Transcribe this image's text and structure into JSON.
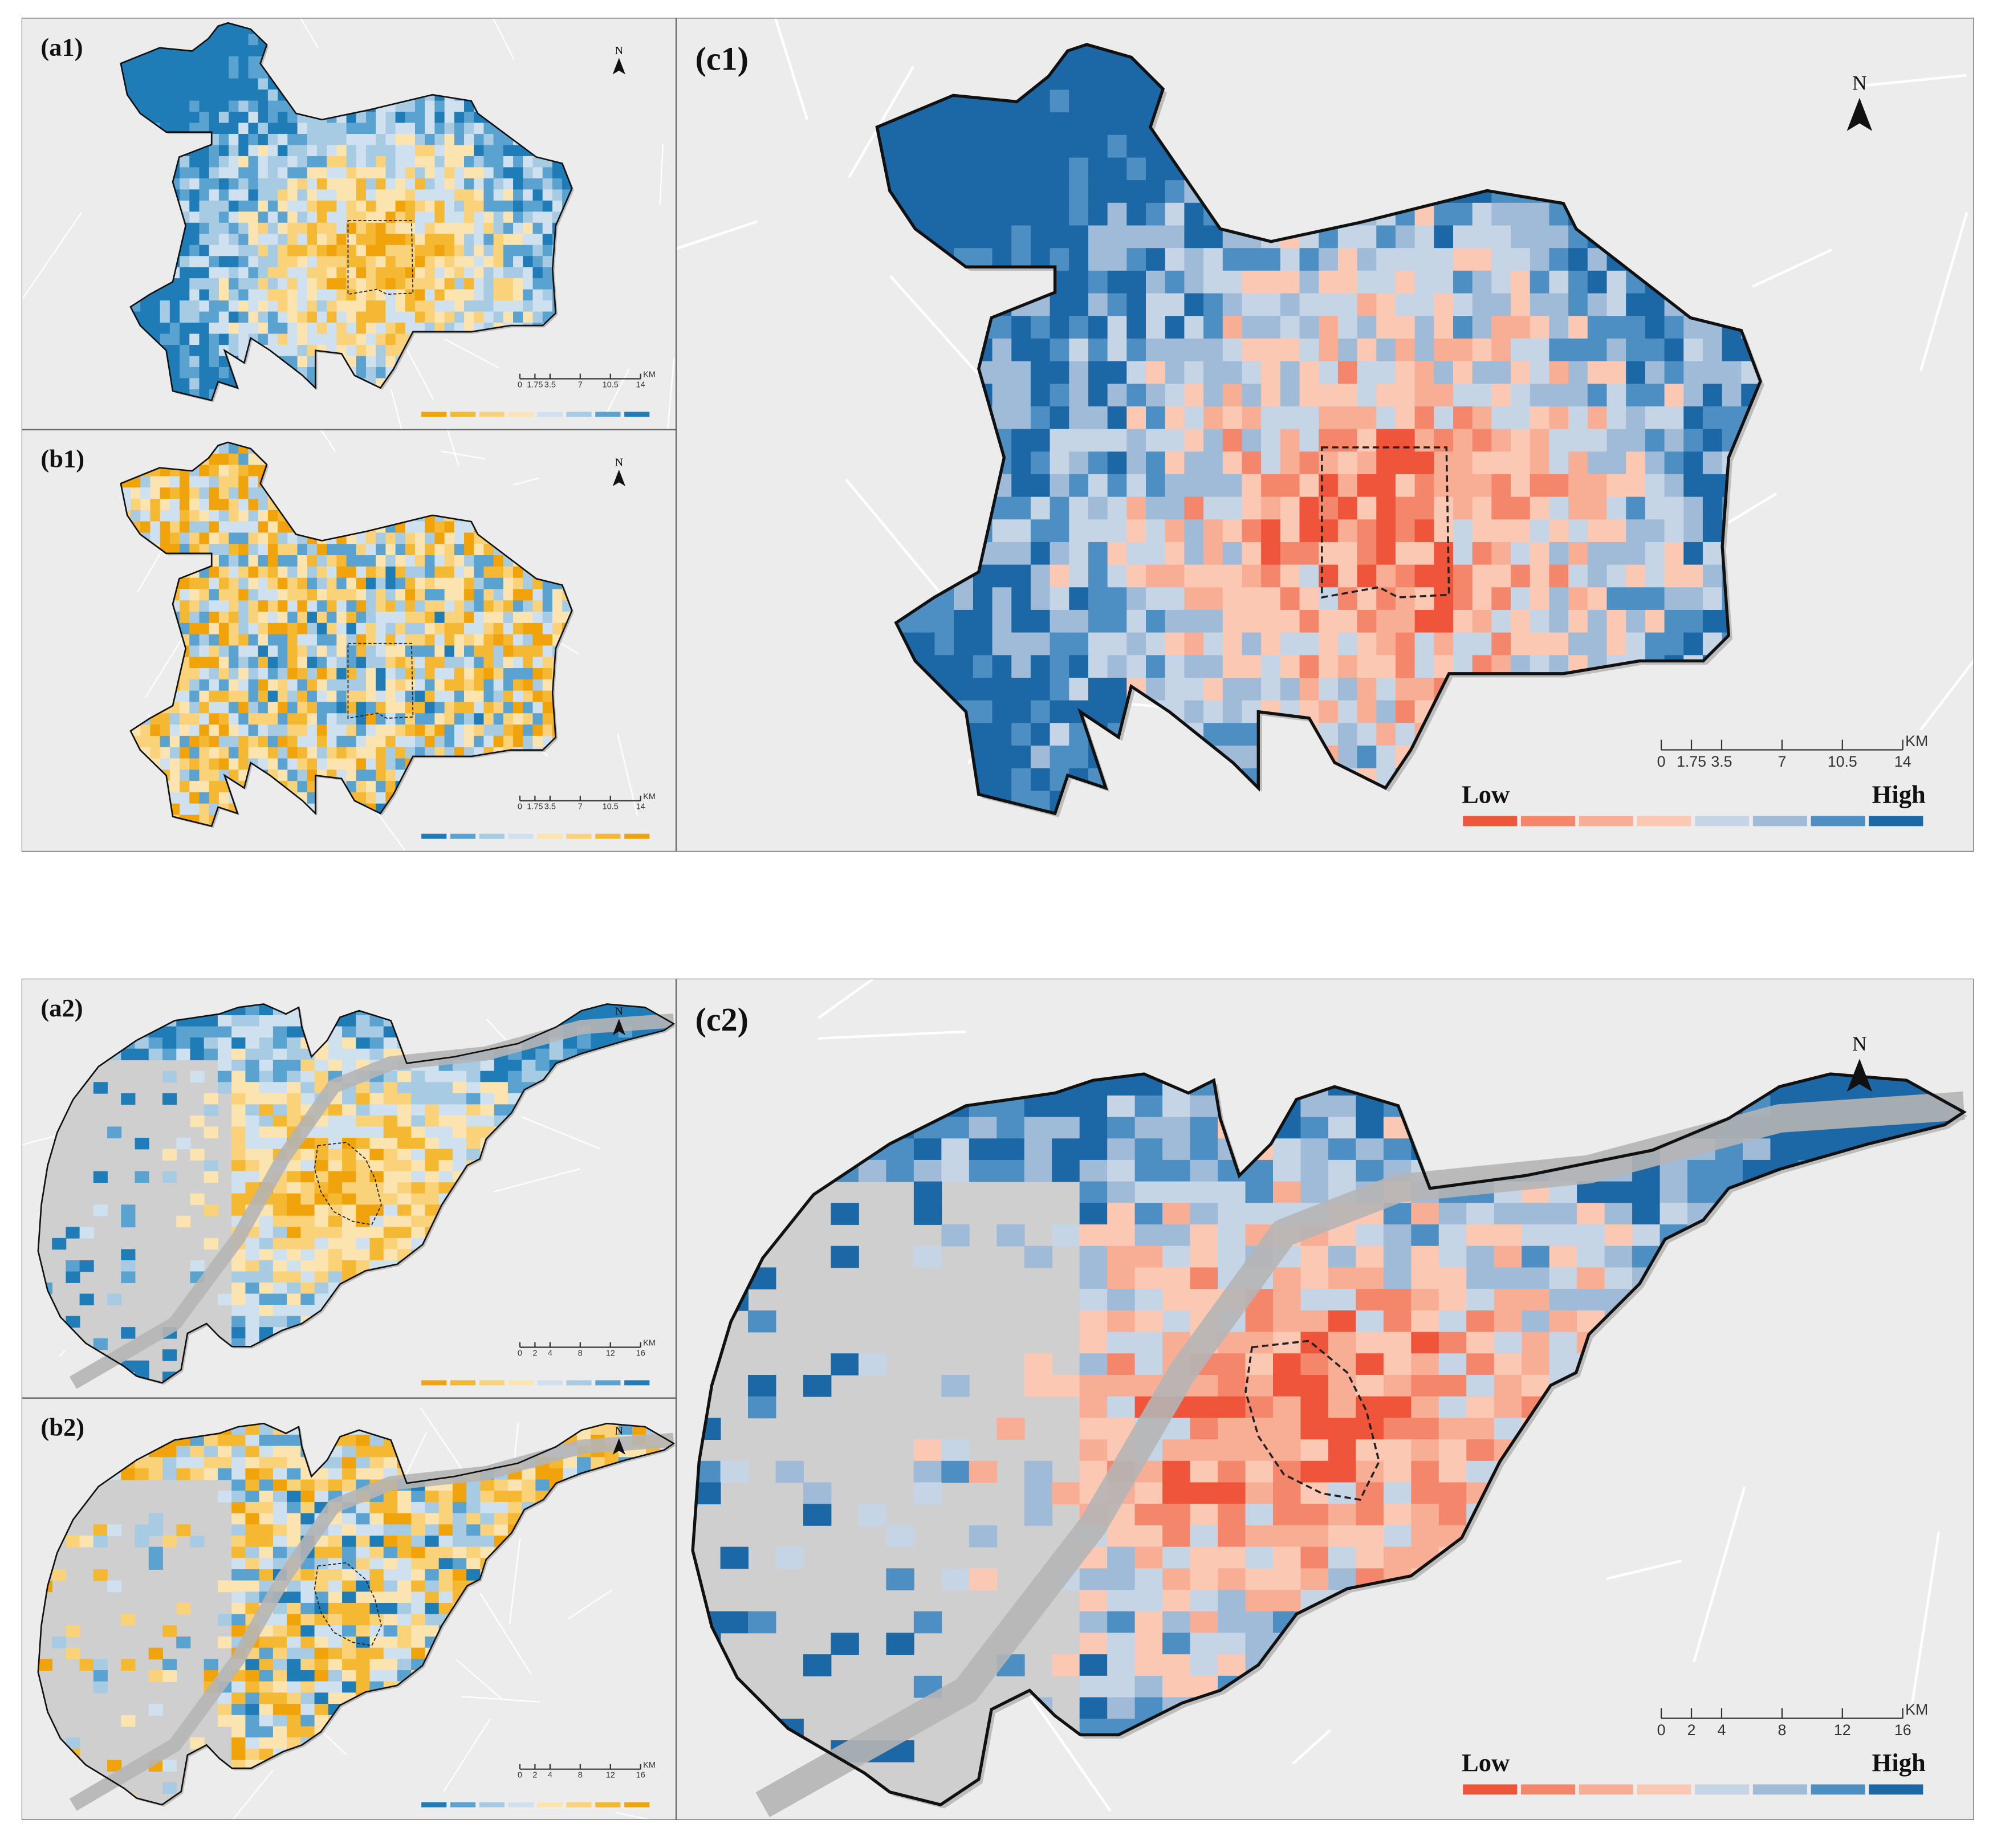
{
  "panels": [
    {
      "label": "(a1)",
      "north": "N",
      "scale_ticks": [
        0,
        1.75,
        3.5,
        7,
        10.5,
        14
      ],
      "scale_unit": "KM",
      "colors": [
        "#f0a30a",
        "#f5b833",
        "#f9d27a",
        "#fce4b0",
        "#cfe0ee",
        "#a8cbe4",
        "#5aa2cf",
        "#1f7cb6"
      ]
    },
    {
      "label": "(b1)",
      "north": "N",
      "scale_ticks": [
        0,
        1.75,
        3.5,
        7,
        10.5,
        14
      ],
      "scale_unit": "KM",
      "colors": [
        "#1f7cb6",
        "#5aa2cf",
        "#a8cbe4",
        "#cfe0ee",
        "#fce4b0",
        "#f9d27a",
        "#f5b833",
        "#f0a30a"
      ]
    },
    {
      "label": "(c1)",
      "north": "N",
      "scale_ticks": [
        0,
        1.75,
        3.5,
        7,
        10.5,
        14
      ],
      "scale_unit": "KM",
      "legend_low": "Low",
      "legend_high": "High",
      "colors": [
        "#ef553a",
        "#f4876b",
        "#f8ae95",
        "#fbc8b3",
        "#c6d5e6",
        "#a0bbd8",
        "#4d8fc2",
        "#1c67a6"
      ]
    },
    {
      "label": "(a2)",
      "north": "N",
      "scale_ticks": [
        0,
        2,
        4,
        8,
        12,
        16
      ],
      "scale_unit": "KM",
      "colors": [
        "#f0a30a",
        "#f5b833",
        "#f9d27a",
        "#fce4b0",
        "#cfe0ee",
        "#a8cbe4",
        "#5aa2cf",
        "#1f7cb6"
      ]
    },
    {
      "label": "(b2)",
      "north": "N",
      "scale_ticks": [
        0,
        2,
        4,
        8,
        12,
        16
      ],
      "scale_unit": "KM",
      "colors": [
        "#1f7cb6",
        "#5aa2cf",
        "#a8cbe4",
        "#cfe0ee",
        "#fce4b0",
        "#f9d27a",
        "#f5b833",
        "#f0a30a"
      ]
    },
    {
      "label": "(c2)",
      "north": "N",
      "scale_ticks": [
        0,
        2,
        4,
        8,
        12,
        16
      ],
      "scale_unit": "KM",
      "legend_low": "Low",
      "legend_high": "High",
      "colors": [
        "#ef553a",
        "#f4876b",
        "#f8ae95",
        "#fbc8b3",
        "#c6d5e6",
        "#a0bbd8",
        "#4d8fc2",
        "#1c67a6"
      ]
    }
  ]
}
